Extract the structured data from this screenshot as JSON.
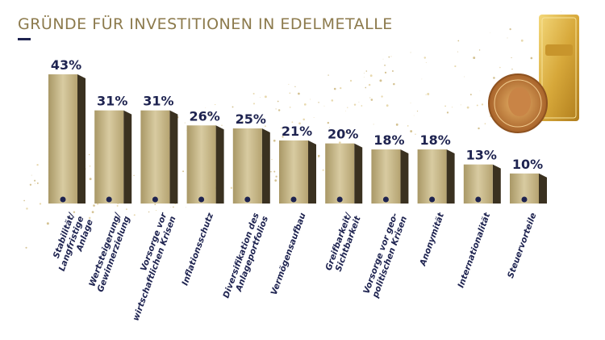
{
  "chart_data": {
    "type": "bar",
    "title": "GRÜNDE FÜR INVESTITIONEN IN EDELMETALLE",
    "categories": [
      "Stabilität/\nLangfristige Anlage",
      "Wertsteigerung/\nGewinnerzielung",
      "Vorsorge vor\nwirtschaftlichen Krisen",
      "Inflationsschutz",
      "Diversifikation des\nAnlageportfolios",
      "Vermögensaufbau",
      "Greifbarkeit/\nSichtbarkeit",
      "Vorsorge vor geo-\npolitischen Krisen",
      "Anonymität",
      "Internationalität",
      "Steuervorteile"
    ],
    "values": [
      43,
      31,
      31,
      26,
      25,
      21,
      20,
      18,
      18,
      13,
      10
    ],
    "value_labels": [
      "43%",
      "31%",
      "31%",
      "26%",
      "25%",
      "21%",
      "20%",
      "18%",
      "18%",
      "13%",
      "10%"
    ],
    "color": "#c9b98c"
  }
}
